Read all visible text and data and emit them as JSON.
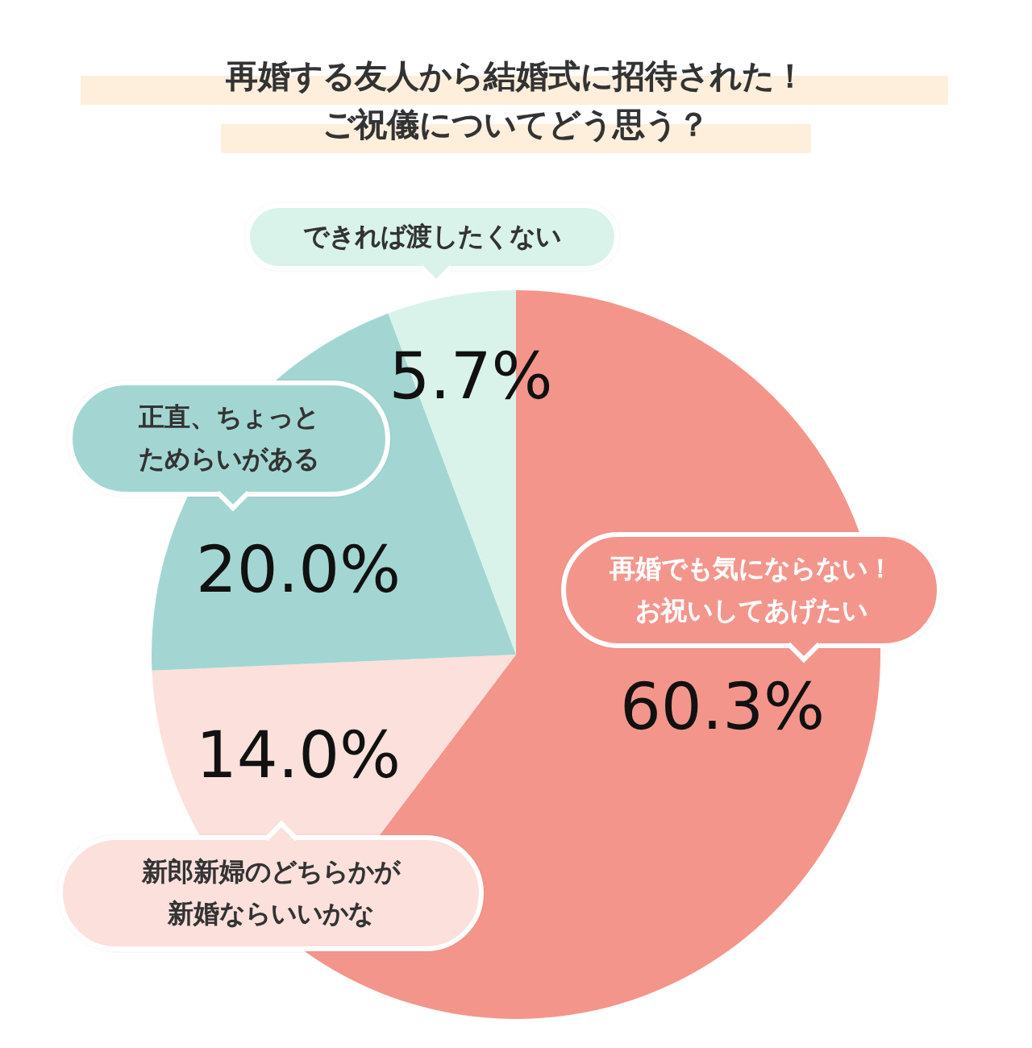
{
  "chart_data": {
    "type": "pie",
    "title": "再婚する友人から結婚式に招待された！ご祝儀についてどう思う？",
    "categories": [
      "再婚でも気にならない！お祝いしてあげたい",
      "新郎新婦のどちらかが新婚ならいいかな",
      "正直、ちょっとためらいがある",
      "できれば渡したくない"
    ],
    "values": [
      60.3,
      14.0,
      20.0,
      5.7
    ],
    "colors": [
      "#f4958c",
      "#fbe0dc",
      "#a3d6d2",
      "#d9f3ea"
    ],
    "value_labels": [
      "60.3%",
      "14.0%",
      "20.0%",
      "5.7%"
    ]
  }
}
